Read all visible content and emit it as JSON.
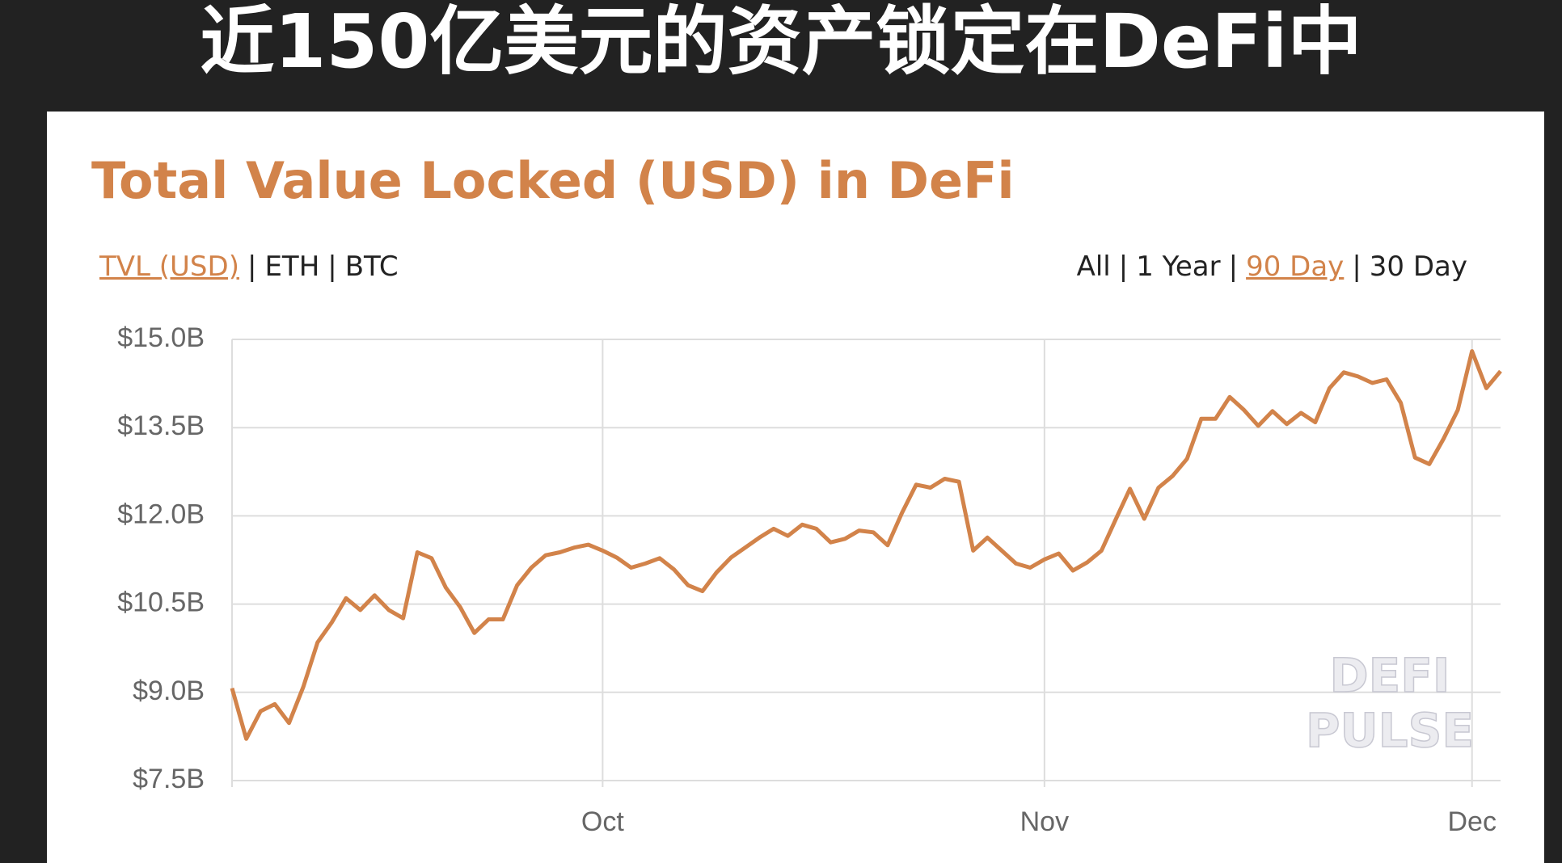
{
  "chart_data": {
    "type": "line",
    "headline": "近150亿美元的资产锁定在DeFi中",
    "title": "Total Value Locked (USD) in DeFi",
    "unit_options": [
      "TVL (USD)",
      "ETH",
      "BTC"
    ],
    "unit_selected": 0,
    "range_options": [
      "All",
      "1 Year",
      "90 Day",
      "30 Day"
    ],
    "range_selected": 2,
    "separator": "|",
    "watermark": [
      "DEFI",
      "PULSE"
    ],
    "color": "#d2834a",
    "grid": true,
    "x": [
      0,
      1,
      2,
      3,
      4,
      5,
      6,
      7,
      8,
      9,
      10,
      11,
      12,
      13,
      14,
      15,
      16,
      17,
      18,
      19,
      20,
      21,
      22,
      23,
      24,
      25,
      26,
      27,
      28,
      29,
      30,
      31,
      32,
      33,
      34,
      35,
      36,
      37,
      38,
      39,
      40,
      41,
      42,
      43,
      44,
      45,
      46,
      47,
      48,
      49,
      50,
      51,
      52,
      53,
      54,
      55,
      56,
      57,
      58,
      59,
      60,
      61,
      62,
      63,
      64,
      65,
      66,
      67,
      68,
      69,
      70,
      71,
      72,
      73,
      74,
      75,
      76,
      77,
      78,
      79,
      80,
      81,
      82,
      83,
      84,
      85,
      86,
      87,
      88,
      89
    ],
    "values": [
      9.07,
      8.21,
      8.68,
      8.8,
      8.48,
      9.09,
      9.85,
      10.19,
      10.6,
      10.4,
      10.65,
      10.4,
      10.26,
      11.38,
      11.28,
      10.78,
      10.45,
      10.01,
      10.24,
      10.24,
      10.82,
      11.12,
      11.33,
      11.38,
      11.46,
      11.51,
      11.41,
      11.29,
      11.12,
      11.19,
      11.28,
      11.09,
      10.82,
      10.72,
      11.04,
      11.29,
      11.46,
      11.63,
      11.78,
      11.66,
      11.85,
      11.78,
      11.55,
      11.61,
      11.75,
      11.72,
      11.5,
      12.05,
      12.53,
      12.48,
      12.63,
      12.58,
      11.41,
      11.63,
      11.41,
      11.19,
      11.12,
      11.26,
      11.36,
      11.07,
      11.21,
      11.41,
      11.94,
      12.46,
      11.95,
      12.48,
      12.68,
      12.97,
      13.65,
      13.65,
      14.02,
      13.8,
      13.53,
      13.78,
      13.56,
      13.75,
      13.59,
      14.17,
      14.44,
      14.37,
      14.26,
      14.32,
      13.92,
      12.99,
      12.88,
      13.31,
      13.8,
      14.8,
      14.17,
      14.46
    ],
    "xlim": [
      0,
      89
    ],
    "xticks": [
      {
        "value": 26,
        "label": "Oct"
      },
      {
        "value": 57,
        "label": "Nov"
      },
      {
        "value": 87,
        "label": "Dec"
      }
    ],
    "ylim": [
      7.5,
      15.0
    ],
    "yticks": [
      {
        "value": 7.5,
        "label": "$7.5B"
      },
      {
        "value": 9.0,
        "label": "$9.0B"
      },
      {
        "value": 10.5,
        "label": "$10.5B"
      },
      {
        "value": 12.0,
        "label": "$12.0B"
      },
      {
        "value": 13.5,
        "label": "$13.5B"
      },
      {
        "value": 15.0,
        "label": "$15.0B"
      }
    ]
  }
}
